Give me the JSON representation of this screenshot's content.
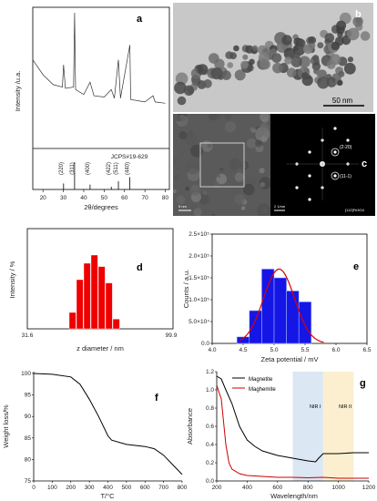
{
  "figure": {
    "panels": {
      "a": {
        "label": "a",
        "ylabel": "Intensity /u.a.",
        "xlabel": "2θ/degrees",
        "xticks": [
          "20",
          "30",
          "40",
          "50",
          "60",
          "70",
          "80"
        ],
        "reference": "JCPS#19-629",
        "peaks": [
          {
            "label": "(220)",
            "x": 30.1,
            "h": 0.22
          },
          {
            "label": "(311)",
            "x": 35.5,
            "h": 1.0
          },
          {
            "label": "(400)",
            "x": 43.1,
            "h": 0.18
          },
          {
            "label": "(422)",
            "x": 53.5,
            "h": 0.1
          },
          {
            "label": "(511)",
            "x": 57.0,
            "h": 0.3
          },
          {
            "label": "(440)",
            "x": 62.6,
            "h": 0.45
          }
        ]
      },
      "b": {
        "label": "b",
        "scalebar": "50 nm"
      },
      "c": {
        "label": "c",
        "scale_left": "5 nm",
        "scale_right": "2 1/nm",
        "spot1": "(2-20)",
        "spot2": "(11-1)",
        "zone": "[112]Fe3O4"
      },
      "d": {
        "label": "d",
        "ylabel": "Intensity / %",
        "xlabel": "z diameter / nm",
        "xtick_left": "31.6",
        "xtick_right": "99.9"
      },
      "e": {
        "label": "e",
        "ylabel": "Counts / a.u.",
        "xlabel": "Zeta potential / mV",
        "xticks": [
          "4.0",
          "4.5",
          "5.0",
          "5.5",
          "6.0",
          "6.5"
        ],
        "yticks": [
          "0.0",
          "5.0×10⁴",
          "1.0×10⁵",
          "1.5×10⁵",
          "2.0×10⁵",
          "2.5×10⁵"
        ]
      },
      "f": {
        "label": "f",
        "ylabel": "Weight loss/%",
        "xlabel": "T/°C",
        "xticks": [
          "0",
          "100",
          "200",
          "300",
          "400",
          "500",
          "600",
          "700",
          "800"
        ],
        "yticks": [
          "75",
          "80",
          "85",
          "90",
          "95",
          "100"
        ]
      },
      "g": {
        "label": "g",
        "ylabel": "Absorbance",
        "xlabel": "Wavelength/nm",
        "xticks": [
          "200",
          "400",
          "600",
          "800",
          "1000",
          "1200"
        ],
        "yticks": [
          "0.0",
          "0.2",
          "0.4",
          "0.6",
          "0.8",
          "1.0",
          "1.2"
        ],
        "legend": [
          {
            "name": "Magnetite",
            "color": "#000000"
          },
          {
            "name": "Maghemite",
            "color": "#cc0000"
          }
        ],
        "band1": "NIR I",
        "band2": "NIR II"
      }
    }
  },
  "chart_data": [
    {
      "type": "line",
      "panel": "a",
      "xlabel": "2θ/degrees",
      "ylabel": "Intensity /u.a.",
      "xlim": [
        15,
        82
      ],
      "x": [
        15,
        20,
        25,
        29.5,
        30.1,
        31,
        35,
        35.5,
        36,
        40,
        43.1,
        45,
        50,
        53.5,
        55,
        57,
        58,
        62.6,
        63,
        70,
        74,
        75,
        80
      ],
      "y": [
        0.62,
        0.5,
        0.42,
        0.4,
        0.58,
        0.39,
        0.4,
        1.0,
        0.38,
        0.34,
        0.44,
        0.33,
        0.32,
        0.38,
        0.31,
        0.62,
        0.31,
        0.74,
        0.3,
        0.28,
        0.33,
        0.28,
        0.27
      ]
    },
    {
      "type": "bar",
      "panel": "d",
      "xlabel": "z diameter / nm",
      "ylabel": "Intensity / %",
      "values": [
        5,
        15,
        20,
        22.5,
        19,
        14,
        3
      ]
    },
    {
      "type": "bar",
      "panel": "e",
      "xlabel": "Zeta potential / mV",
      "ylabel": "Counts / a.u.",
      "categories": [
        "4.5",
        "4.7",
        "4.9",
        "5.1",
        "5.3",
        "5.5"
      ],
      "values": [
        15000,
        75000,
        170000,
        150000,
        120000,
        95000
      ],
      "xlim": [
        4.0,
        6.5
      ],
      "ylim": [
        0,
        250000
      ]
    },
    {
      "type": "line",
      "panel": "f",
      "xlabel": "T/°C",
      "ylabel": "Weight loss/%",
      "xlim": [
        0,
        800
      ],
      "ylim": [
        75,
        100
      ],
      "x": [
        0,
        100,
        200,
        250,
        300,
        350,
        400,
        420,
        500,
        600,
        650,
        700,
        800
      ],
      "y": [
        100,
        99.8,
        99.2,
        97.5,
        94,
        90,
        85.5,
        84.5,
        83.5,
        83,
        82.5,
        81,
        76.5
      ]
    },
    {
      "type": "line",
      "panel": "g",
      "xlabel": "Wavelength/nm",
      "ylabel": "Absorbance",
      "xlim": [
        200,
        1200
      ],
      "ylim": [
        0,
        1.2
      ],
      "series": [
        {
          "name": "Magnetite",
          "x": [
            200,
            230,
            260,
            300,
            350,
            400,
            450,
            500,
            600,
            700,
            800,
            850,
            870,
            900,
            1000,
            1100,
            1200
          ],
          "y": [
            1.15,
            1.12,
            1.0,
            0.85,
            0.6,
            0.45,
            0.38,
            0.33,
            0.28,
            0.25,
            0.22,
            0.21,
            0.25,
            0.3,
            0.3,
            0.31,
            0.31
          ]
        },
        {
          "name": "Maghemite",
          "x": [
            200,
            230,
            260,
            280,
            300,
            350,
            400,
            500,
            600,
            700,
            800,
            900,
            1000,
            1100,
            1200
          ],
          "y": [
            1.05,
            0.9,
            0.4,
            0.2,
            0.13,
            0.08,
            0.06,
            0.05,
            0.04,
            0.04,
            0.035,
            0.04,
            0.03,
            0.03,
            0.03
          ]
        }
      ]
    }
  ]
}
